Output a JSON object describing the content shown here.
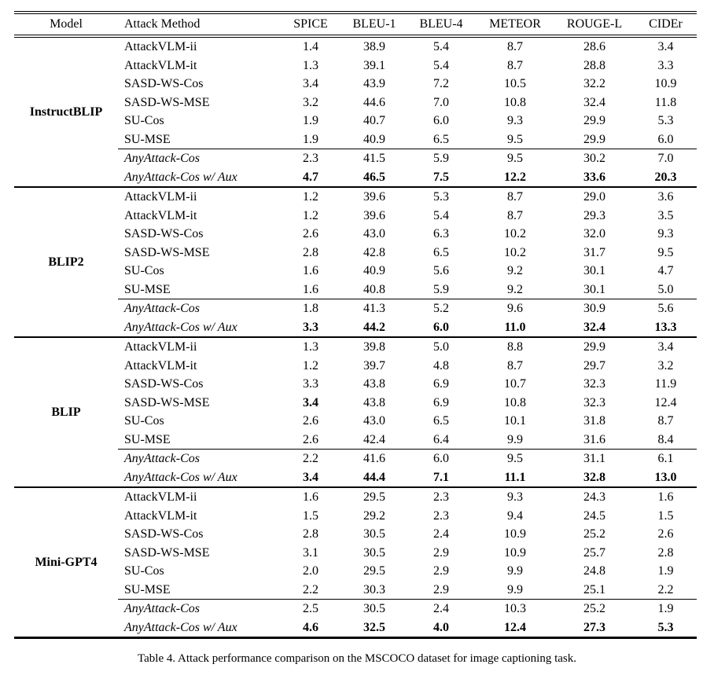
{
  "table": {
    "caption": "Table 4. Attack performance comparison on the MSCOCO dataset for image captioning task.",
    "columns": [
      "Model",
      "Attack Method",
      "SPICE",
      "BLEU-1",
      "BLEU-4",
      "METEOR",
      "ROUGE-L",
      "CIDEr"
    ],
    "groups": [
      {
        "model": "InstructBLIP",
        "rows": [
          {
            "method": "AttackVLM-ii",
            "values": [
              "1.4",
              "38.9",
              "5.4",
              "8.7",
              "28.6",
              "3.4"
            ]
          },
          {
            "method": "AttackVLM-it",
            "values": [
              "1.3",
              "39.1",
              "5.4",
              "8.7",
              "28.8",
              "3.3"
            ]
          },
          {
            "method": "SASD-WS-Cos",
            "values": [
              "3.4",
              "43.9",
              "7.2",
              "10.5",
              "32.2",
              "10.9"
            ]
          },
          {
            "method": "SASD-WS-MSE",
            "values": [
              "3.2",
              "44.6",
              "7.0",
              "10.8",
              "32.4",
              "11.8"
            ]
          },
          {
            "method": "SU-Cos",
            "values": [
              "1.9",
              "40.7",
              "6.0",
              "9.3",
              "29.9",
              "5.3"
            ]
          },
          {
            "method": "SU-MSE",
            "values": [
              "1.9",
              "40.9",
              "6.5",
              "9.5",
              "29.9",
              "6.0"
            ]
          },
          {
            "method": "AnyAttack-Cos",
            "italic": true,
            "rule_above": true,
            "values": [
              "2.3",
              "41.5",
              "5.9",
              "9.5",
              "30.2",
              "7.0"
            ]
          },
          {
            "method": "AnyAttack-Cos w/ Aux",
            "italic": true,
            "bold": [
              true,
              true,
              true,
              true,
              true,
              true
            ],
            "values": [
              "4.7",
              "46.5",
              "7.5",
              "12.2",
              "33.6",
              "20.3"
            ]
          }
        ]
      },
      {
        "model": "BLIP2",
        "rows": [
          {
            "method": "AttackVLM-ii",
            "values": [
              "1.2",
              "39.6",
              "5.3",
              "8.7",
              "29.0",
              "3.6"
            ]
          },
          {
            "method": "AttackVLM-it",
            "values": [
              "1.2",
              "39.6",
              "5.4",
              "8.7",
              "29.3",
              "3.5"
            ]
          },
          {
            "method": "SASD-WS-Cos",
            "values": [
              "2.6",
              "43.0",
              "6.3",
              "10.2",
              "32.0",
              "9.3"
            ]
          },
          {
            "method": "SASD-WS-MSE",
            "values": [
              "2.8",
              "42.8",
              "6.5",
              "10.2",
              "31.7",
              "9.5"
            ]
          },
          {
            "method": "SU-Cos",
            "values": [
              "1.6",
              "40.9",
              "5.6",
              "9.2",
              "30.1",
              "4.7"
            ]
          },
          {
            "method": "SU-MSE",
            "values": [
              "1.6",
              "40.8",
              "5.9",
              "9.2",
              "30.1",
              "5.0"
            ]
          },
          {
            "method": "AnyAttack-Cos",
            "italic": true,
            "rule_above": true,
            "values": [
              "1.8",
              "41.3",
              "5.2",
              "9.6",
              "30.9",
              "5.6"
            ]
          },
          {
            "method": "AnyAttack-Cos w/ Aux",
            "italic": true,
            "bold": [
              true,
              true,
              true,
              true,
              true,
              true
            ],
            "values": [
              "3.3",
              "44.2",
              "6.0",
              "11.0",
              "32.4",
              "13.3"
            ]
          }
        ]
      },
      {
        "model": "BLIP",
        "rows": [
          {
            "method": "AttackVLM-ii",
            "values": [
              "1.3",
              "39.8",
              "5.0",
              "8.8",
              "29.9",
              "3.4"
            ]
          },
          {
            "method": "AttackVLM-it",
            "values": [
              "1.2",
              "39.7",
              "4.8",
              "8.7",
              "29.7",
              "3.2"
            ]
          },
          {
            "method": "SASD-WS-Cos",
            "values": [
              "3.3",
              "43.8",
              "6.9",
              "10.7",
              "32.3",
              "11.9"
            ]
          },
          {
            "method": "SASD-WS-MSE",
            "bold": [
              true,
              false,
              false,
              false,
              false,
              false
            ],
            "values": [
              "3.4",
              "43.8",
              "6.9",
              "10.8",
              "32.3",
              "12.4"
            ]
          },
          {
            "method": "SU-Cos",
            "values": [
              "2.6",
              "43.0",
              "6.5",
              "10.1",
              "31.8",
              "8.7"
            ]
          },
          {
            "method": "SU-MSE",
            "values": [
              "2.6",
              "42.4",
              "6.4",
              "9.9",
              "31.6",
              "8.4"
            ]
          },
          {
            "method": "AnyAttack-Cos",
            "italic": true,
            "rule_above": true,
            "values": [
              "2.2",
              "41.6",
              "6.0",
              "9.5",
              "31.1",
              "6.1"
            ]
          },
          {
            "method": "AnyAttack-Cos w/ Aux",
            "italic": true,
            "bold": [
              true,
              true,
              true,
              true,
              true,
              true
            ],
            "values": [
              "3.4",
              "44.4",
              "7.1",
              "11.1",
              "32.8",
              "13.0"
            ]
          }
        ]
      },
      {
        "model": "Mini-GPT4",
        "rows": [
          {
            "method": "AttackVLM-ii",
            "values": [
              "1.6",
              "29.5",
              "2.3",
              "9.3",
              "24.3",
              "1.6"
            ]
          },
          {
            "method": "AttackVLM-it",
            "values": [
              "1.5",
              "29.2",
              "2.3",
              "9.4",
              "24.5",
              "1.5"
            ]
          },
          {
            "method": "SASD-WS-Cos",
            "values": [
              "2.8",
              "30.5",
              "2.4",
              "10.9",
              "25.2",
              "2.6"
            ]
          },
          {
            "method": "SASD-WS-MSE",
            "values": [
              "3.1",
              "30.5",
              "2.9",
              "10.9",
              "25.7",
              "2.8"
            ]
          },
          {
            "method": "SU-Cos",
            "values": [
              "2.0",
              "29.5",
              "2.9",
              "9.9",
              "24.8",
              "1.9"
            ]
          },
          {
            "method": "SU-MSE",
            "values": [
              "2.2",
              "30.3",
              "2.9",
              "9.9",
              "25.1",
              "2.2"
            ]
          },
          {
            "method": "AnyAttack-Cos",
            "italic": true,
            "rule_above": true,
            "values": [
              "2.5",
              "30.5",
              "2.4",
              "10.3",
              "25.2",
              "1.9"
            ]
          },
          {
            "method": "AnyAttack-Cos w/ Aux",
            "italic": true,
            "bold": [
              true,
              true,
              true,
              true,
              true,
              true
            ],
            "values": [
              "4.6",
              "32.5",
              "4.0",
              "12.4",
              "27.3",
              "5.3"
            ]
          }
        ]
      }
    ]
  }
}
